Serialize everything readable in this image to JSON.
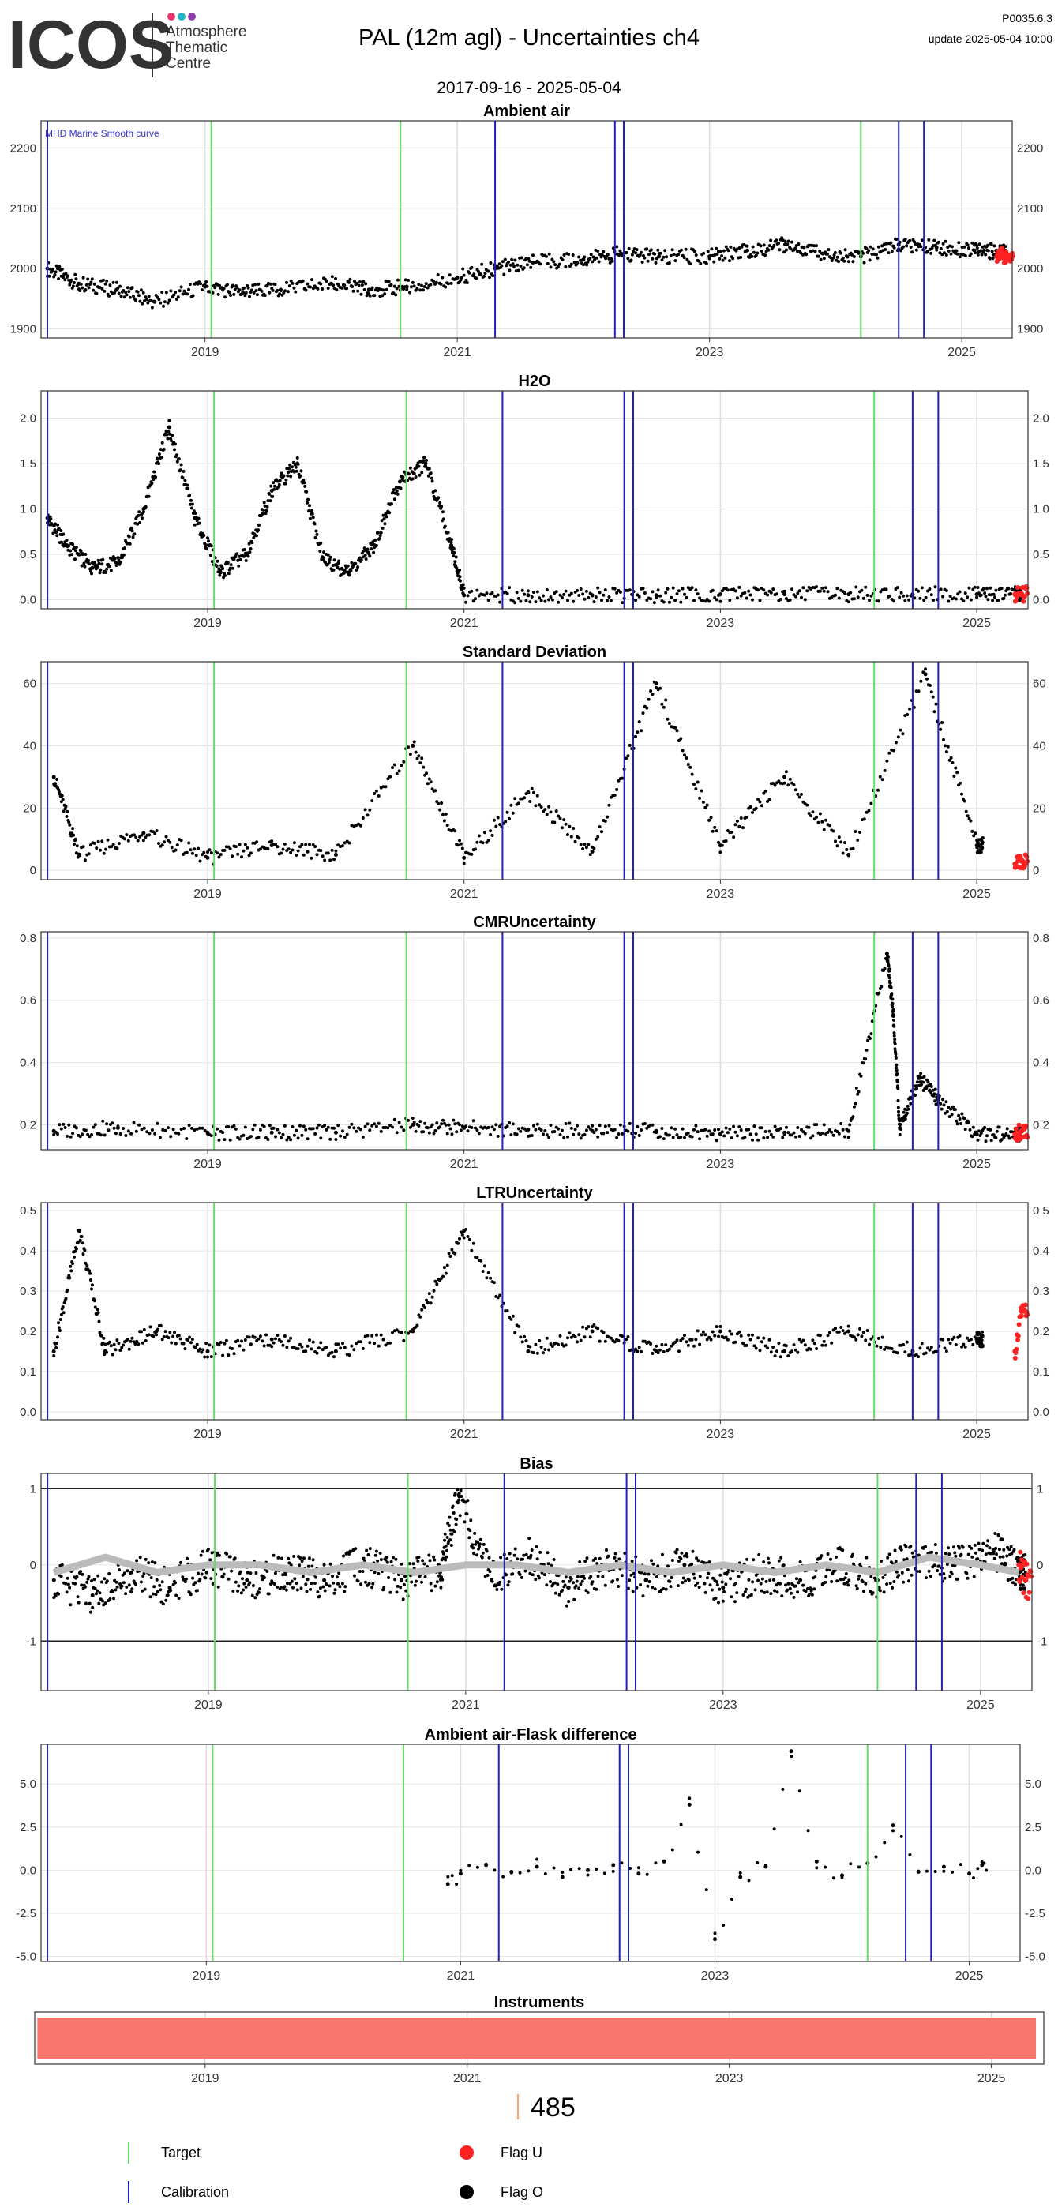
{
  "header": {
    "logo_text": "ICOS",
    "logo_subtitle": [
      "Atmosphere",
      "Thematic",
      "Centre"
    ],
    "title": "PAL  (12m agl) - Uncertainties ch4",
    "date_range": "2017-09-16 - 2025-05-04",
    "version": "P0035.6.3",
    "update": "update  2025-05-04 10:00",
    "logo_dot_colors": [
      "#e8336d",
      "#1fb5c9",
      "#8f3fae"
    ]
  },
  "colors": {
    "target_line": "#66dd66",
    "calibration_line": "#2222bb",
    "flag_u": "#ff2222",
    "flag_o": "#000000",
    "smooth_curve": "#bbbbbb",
    "instrument_bar": "#f8766d",
    "annotation": "#3333cc"
  },
  "chart_data": [
    {
      "type": "scatter",
      "title": "Ambient air",
      "x_ticks": [
        "2019",
        "2021",
        "2023",
        "2025"
      ],
      "ylim": [
        1885,
        2245
      ],
      "y_ticks": [
        1900,
        2000,
        2100,
        2200
      ],
      "annotation": "MHD Marine Smooth curve",
      "target_lines": [
        2019.05,
        2020.55,
        2024.2
      ],
      "calibration_lines": [
        2017.75,
        2021.3,
        2022.25,
        2022.32,
        2024.5,
        2024.7
      ],
      "series": [
        {
          "name": "Flag O",
          "color": "flag_o",
          "x": [
            2017.75,
            2018.0,
            2018.3,
            2018.6,
            2019.0,
            2019.3,
            2019.6,
            2020.0,
            2020.3,
            2020.6,
            2021.0,
            2021.3,
            2021.6,
            2022.0,
            2022.3,
            2022.6,
            2023.0,
            2023.3,
            2023.6,
            2023.9,
            2024.2,
            2024.5,
            2024.8,
            2025.1,
            2025.3
          ],
          "y": [
            2000,
            1975,
            1965,
            1945,
            1970,
            1960,
            1965,
            1975,
            1965,
            1970,
            1985,
            2000,
            2010,
            2015,
            2025,
            2020,
            2020,
            2030,
            2040,
            2025,
            2020,
            2040,
            2035,
            2030,
            2028
          ]
        },
        {
          "name": "Flag U",
          "color": "flag_u",
          "x": [
            2025.28,
            2025.32,
            2025.36
          ],
          "y": [
            2020,
            2025,
            2015
          ]
        }
      ]
    },
    {
      "type": "scatter",
      "title": "H2O",
      "x_ticks": [
        "2019",
        "2021",
        "2023",
        "2025"
      ],
      "ylim": [
        -0.1,
        2.3
      ],
      "y_ticks": [
        0.0,
        0.5,
        1.0,
        1.5,
        2.0
      ],
      "target_lines": [
        2019.05,
        2020.55,
        2024.2
      ],
      "calibration_lines": [
        2017.75,
        2021.3,
        2022.25,
        2022.32,
        2024.5,
        2024.7
      ],
      "series": [
        {
          "name": "Flag O",
          "color": "flag_o",
          "x": [
            2017.75,
            2017.9,
            2018.1,
            2018.3,
            2018.5,
            2018.7,
            2018.9,
            2019.1,
            2019.3,
            2019.5,
            2019.7,
            2019.9,
            2020.1,
            2020.3,
            2020.5,
            2020.7,
            2020.9,
            2021.0,
            2021.5,
            2022.0,
            2022.5,
            2023.0,
            2023.5,
            2024.0,
            2024.5,
            2025.0,
            2025.3
          ],
          "y": [
            0.9,
            0.6,
            0.35,
            0.4,
            1.0,
            1.9,
            0.9,
            0.3,
            0.5,
            1.2,
            1.5,
            0.45,
            0.3,
            0.6,
            1.3,
            1.5,
            0.6,
            0.05,
            0.05,
            0.05,
            0.05,
            0.06,
            0.06,
            0.06,
            0.06,
            0.06,
            0.06
          ]
        },
        {
          "name": "Flag U",
          "color": "flag_u",
          "x": [
            2025.3,
            2025.35
          ],
          "y": [
            0.06,
            0.06
          ]
        }
      ]
    },
    {
      "type": "scatter",
      "title": "Standard Deviation",
      "x_ticks": [
        "2019",
        "2021",
        "2023",
        "2025"
      ],
      "ylim": [
        -3,
        67
      ],
      "y_ticks": [
        0,
        20,
        40,
        60
      ],
      "target_lines": [
        2019.05,
        2020.55,
        2024.2
      ],
      "calibration_lines": [
        2017.75,
        2021.3,
        2022.25,
        2022.32,
        2024.5,
        2024.7
      ],
      "series": [
        {
          "name": "Flag O",
          "color": "flag_o",
          "x": [
            2017.8,
            2018.0,
            2018.5,
            2019.0,
            2019.5,
            2020.0,
            2020.6,
            2021.0,
            2021.5,
            2022.0,
            2022.5,
            2023.0,
            2023.5,
            2024.0,
            2024.6,
            2025.0
          ],
          "y": [
            30,
            5,
            12,
            4,
            8,
            5,
            40,
            4,
            25,
            6,
            60,
            8,
            30,
            5,
            63,
            8
          ]
        },
        {
          "name": "Flag U",
          "color": "flag_u",
          "x": [
            2025.3,
            2025.35
          ],
          "y": [
            2,
            3
          ]
        }
      ]
    },
    {
      "type": "scatter",
      "title": "CMRUncertainty",
      "x_ticks": [
        "2019",
        "2021",
        "2023",
        "2025"
      ],
      "ylim": [
        0.12,
        0.82
      ],
      "y_ticks": [
        0.2,
        0.4,
        0.6,
        0.8
      ],
      "target_lines": [
        2019.05,
        2020.55,
        2024.2
      ],
      "calibration_lines": [
        2017.75,
        2021.3,
        2022.25,
        2022.32,
        2024.5,
        2024.7
      ],
      "series": [
        {
          "name": "Flag O",
          "color": "flag_o",
          "x": [
            2017.8,
            2018.3,
            2019.0,
            2019.5,
            2020.0,
            2020.6,
            2021.0,
            2021.5,
            2022.0,
            2022.5,
            2023.0,
            2023.5,
            2024.0,
            2024.3,
            2024.35,
            2024.4,
            2024.55,
            2024.7,
            2025.0,
            2025.3
          ],
          "y": [
            0.18,
            0.19,
            0.175,
            0.175,
            0.175,
            0.2,
            0.19,
            0.185,
            0.18,
            0.18,
            0.17,
            0.175,
            0.18,
            0.75,
            0.55,
            0.19,
            0.35,
            0.28,
            0.17,
            0.17
          ]
        },
        {
          "name": "Flag U",
          "color": "flag_u",
          "x": [
            2025.3,
            2025.35
          ],
          "y": [
            0.17,
            0.18
          ]
        }
      ]
    },
    {
      "type": "scatter",
      "title": "LTRUncertainty",
      "x_ticks": [
        "2019",
        "2021",
        "2023",
        "2025"
      ],
      "ylim": [
        -0.02,
        0.52
      ],
      "y_ticks": [
        0.0,
        0.1,
        0.2,
        0.3,
        0.4,
        0.5
      ],
      "target_lines": [
        2019.05,
        2020.55,
        2024.2
      ],
      "calibration_lines": [
        2017.75,
        2021.3,
        2022.25,
        2022.32,
        2024.5,
        2024.7
      ],
      "series": [
        {
          "name": "Flag O",
          "color": "flag_o",
          "x": [
            2017.8,
            2018.0,
            2018.2,
            2018.6,
            2019.0,
            2019.5,
            2020.0,
            2020.6,
            2021.0,
            2021.5,
            2022.0,
            2022.5,
            2023.0,
            2023.5,
            2024.0,
            2024.5,
            2025.0
          ],
          "y": [
            0.15,
            0.45,
            0.15,
            0.2,
            0.15,
            0.18,
            0.15,
            0.2,
            0.45,
            0.15,
            0.2,
            0.15,
            0.2,
            0.15,
            0.2,
            0.15,
            0.18
          ]
        },
        {
          "name": "Flag U",
          "color": "flag_u",
          "x": [
            2025.3,
            2025.35
          ],
          "y": [
            0.15,
            0.25
          ]
        }
      ]
    },
    {
      "type": "line",
      "title": "Bias",
      "x_ticks": [
        "2019",
        "2021",
        "2023",
        "2025"
      ],
      "ylim": [
        -1.65,
        1.2
      ],
      "y_ticks": [
        -1,
        0,
        1
      ],
      "reference_lines": [
        -1,
        1
      ],
      "target_lines": [
        2019.05,
        2020.55,
        2024.2
      ],
      "calibration_lines": [
        2017.75,
        2021.3,
        2022.25,
        2022.32,
        2024.5,
        2024.7
      ],
      "series": [
        {
          "name": "Flag O",
          "color": "flag_o",
          "x": [
            2017.8,
            2018.1,
            2018.4,
            2018.7,
            2019.0,
            2019.3,
            2019.6,
            2019.9,
            2020.2,
            2020.5,
            2020.8,
            2020.95,
            2021.2,
            2021.5,
            2021.8,
            2022.1,
            2022.4,
            2022.7,
            2023.0,
            2023.3,
            2023.6,
            2023.9,
            2024.2,
            2024.5,
            2024.8,
            2025.1,
            2025.3
          ],
          "y": [
            -0.2,
            -0.4,
            -0.1,
            -0.3,
            0.0,
            -0.2,
            -0.1,
            -0.2,
            0.0,
            -0.2,
            -0.1,
            0.9,
            -0.2,
            0.1,
            -0.3,
            0.0,
            -0.2,
            0.0,
            -0.3,
            -0.1,
            -0.2,
            0.0,
            -0.2,
            0.1,
            0.0,
            0.2,
            -0.1
          ]
        },
        {
          "name": "Smooth",
          "color": "smooth_curve",
          "x": [
            2017.8,
            2018.2,
            2018.6,
            2019.0,
            2019.4,
            2019.8,
            2020.2,
            2020.6,
            2021.0,
            2021.4,
            2021.8,
            2022.2,
            2022.6,
            2023.0,
            2023.4,
            2023.8,
            2024.2,
            2024.6,
            2025.0,
            2025.3
          ],
          "y": [
            -0.1,
            0.1,
            -0.1,
            0.0,
            0.0,
            -0.1,
            0.0,
            -0.1,
            0.0,
            0.0,
            -0.1,
            0.0,
            -0.1,
            0.0,
            -0.1,
            0.0,
            -0.1,
            0.1,
            0.0,
            -0.1
          ]
        },
        {
          "name": "Flag U",
          "color": "flag_u",
          "x": [
            2025.3,
            2025.35
          ],
          "y": [
            0.0,
            -0.2
          ]
        }
      ]
    },
    {
      "type": "scatter",
      "title": "Ambient air-Flask difference",
      "x_ticks": [
        "2019",
        "2021",
        "2023",
        "2025"
      ],
      "ylim": [
        -5.3,
        7.3
      ],
      "y_ticks": [
        -5.0,
        -2.5,
        0.0,
        2.5,
        5.0
      ],
      "target_lines": [
        2019.05,
        2020.55,
        2024.2
      ],
      "calibration_lines": [
        2017.75,
        2021.3,
        2022.25,
        2022.32,
        2024.5,
        2024.7
      ],
      "series": [
        {
          "name": "Flag O",
          "color": "flag_o",
          "x": [
            2020.9,
            2021.0,
            2021.2,
            2021.4,
            2021.6,
            2021.8,
            2022.0,
            2022.2,
            2022.4,
            2022.6,
            2022.8,
            2023.0,
            2023.2,
            2023.4,
            2023.6,
            2023.8,
            2024.0,
            2024.2,
            2024.4,
            2024.6,
            2024.8,
            2025.0,
            2025.1
          ],
          "y": [
            -0.8,
            -0.2,
            0.3,
            -0.1,
            0.2,
            -0.4,
            0.0,
            0.3,
            -0.2,
            0.5,
            3.8,
            -4.0,
            -0.4,
            0.2,
            6.9,
            0.5,
            -0.3,
            0.4,
            2.6,
            -0.1,
            0.2,
            -0.2,
            0.3
          ]
        }
      ]
    },
    {
      "type": "bar",
      "title": "Instruments",
      "x_ticks": [
        "2019",
        "2021",
        "2023",
        "2025"
      ],
      "bar_color": "instrument_bar",
      "instrument_bar": {
        "start": 2017.72,
        "end": 2025.34
      },
      "value_label": "485"
    }
  ],
  "legend": {
    "items": [
      {
        "label": "Target",
        "kind": "line",
        "color": "target_line"
      },
      {
        "label": "Flag U",
        "kind": "dot",
        "color": "flag_u"
      },
      {
        "label": "Calibration",
        "kind": "line",
        "color": "calibration_line"
      },
      {
        "label": "Flag O",
        "kind": "dot",
        "color": "flag_o"
      }
    ]
  }
}
